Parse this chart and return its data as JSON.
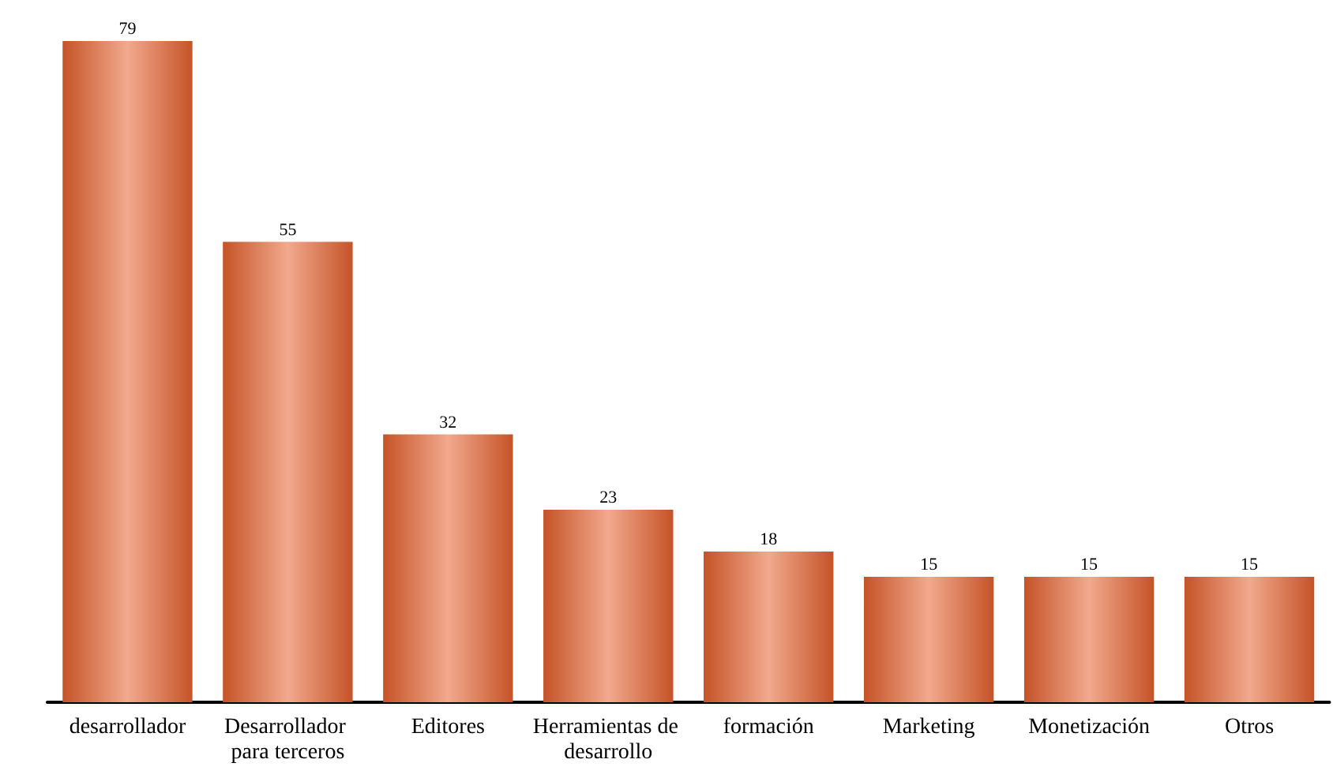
{
  "chart_data": {
    "type": "bar",
    "categories": [
      "desarrollador",
      "Desarrollador para terceros",
      "Editores",
      "Herramientas de desarrollo",
      "formación",
      "Marketing",
      "Monetización",
      "Otros"
    ],
    "values": [
      79,
      55,
      32,
      23,
      18,
      15,
      15,
      15
    ],
    "color": "#e8622f",
    "data_labels": true
  }
}
